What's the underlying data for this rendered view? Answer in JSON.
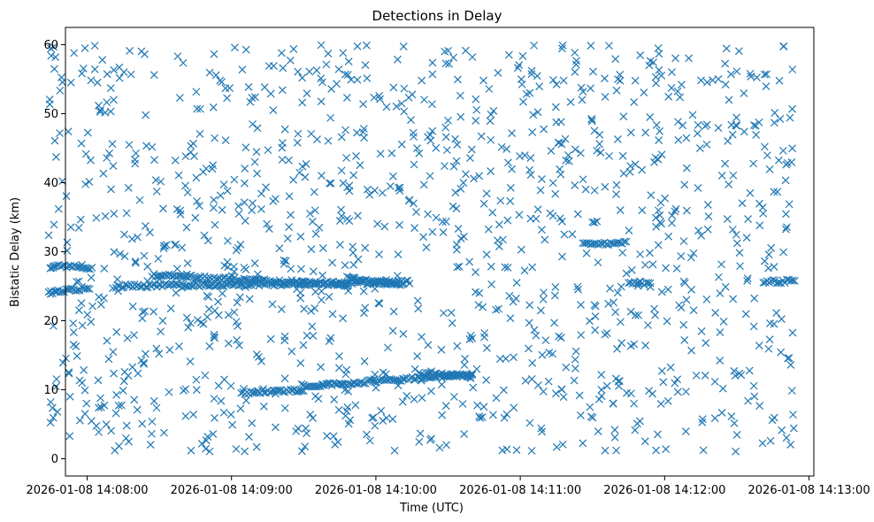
{
  "chart_data": {
    "type": "scatter",
    "title": "Detections in Delay",
    "xlabel": "Time (UTC)",
    "ylabel": "Bistatic Delay (km)",
    "marker": "x",
    "marker_color": "#1f77b4",
    "xlim": [
      "2026-01-08 14:07:51",
      "2026-01-08 14:13:02"
    ],
    "ylim": [
      -2.5,
      62.5
    ],
    "xticks": [
      "2026-01-08 14:08:00",
      "2026-01-08 14:09:00",
      "2026-01-08 14:10:00",
      "2026-01-08 14:11:00",
      "2026-01-08 14:12:00",
      "2026-01-08 14:13:00"
    ],
    "yticks": [
      0,
      10,
      20,
      30,
      40,
      50,
      60
    ],
    "grid": false,
    "legend": "none",
    "series": [
      {
        "tracks": [
          {
            "x_start": "2026-01-08 14:07:44",
            "x_end": "2026-01-08 14:08:01",
            "y_start": 24.0,
            "y_end": 24.8
          },
          {
            "x_start": "2026-01-08 14:07:45",
            "x_end": "2026-01-08 14:08:02",
            "y_start": 27.9,
            "y_end": 27.7
          },
          {
            "x_start": "2026-01-08 14:08:12",
            "x_end": "2026-01-08 14:10:14",
            "y_start": 25.0,
            "y_end": 25.6
          },
          {
            "x_start": "2026-01-08 14:08:27",
            "x_end": "2026-01-08 14:09:48",
            "y_start": 26.6,
            "y_end": 25.2
          },
          {
            "x_start": "2026-01-08 14:09:48",
            "x_end": "2026-01-08 14:10:11",
            "y_start": 26.2,
            "y_end": 25.2
          },
          {
            "x_start": "2026-01-08 14:09:04",
            "x_end": "2026-01-08 14:09:30",
            "y_start": 9.6,
            "y_end": 9.9
          },
          {
            "x_start": "2026-01-08 14:09:30",
            "x_end": "2026-01-08 14:10:40",
            "y_start": 10.5,
            "y_end": 12.2
          },
          {
            "x_start": "2026-01-08 14:10:18",
            "x_end": "2026-01-08 14:10:40",
            "y_start": 12.3,
            "y_end": 12.0
          },
          {
            "x_start": "2026-01-08 14:11:26",
            "x_end": "2026-01-08 14:11:44",
            "y_start": 31.0,
            "y_end": 31.3
          },
          {
            "x_start": "2026-01-08 14:11:45",
            "x_end": "2026-01-08 14:11:54",
            "y_start": 25.6,
            "y_end": 25.3
          },
          {
            "x_start": "2026-01-08 14:12:41",
            "x_end": "2026-01-08 14:12:54",
            "y_start": 25.6,
            "y_end": 25.8
          }
        ],
        "scatter_region": {
          "x_start": "2026-01-08 14:07:44",
          "x_end": "2026-01-08 14:12:54",
          "y_min": 1.0,
          "y_max": 60.0
        }
      }
    ]
  }
}
